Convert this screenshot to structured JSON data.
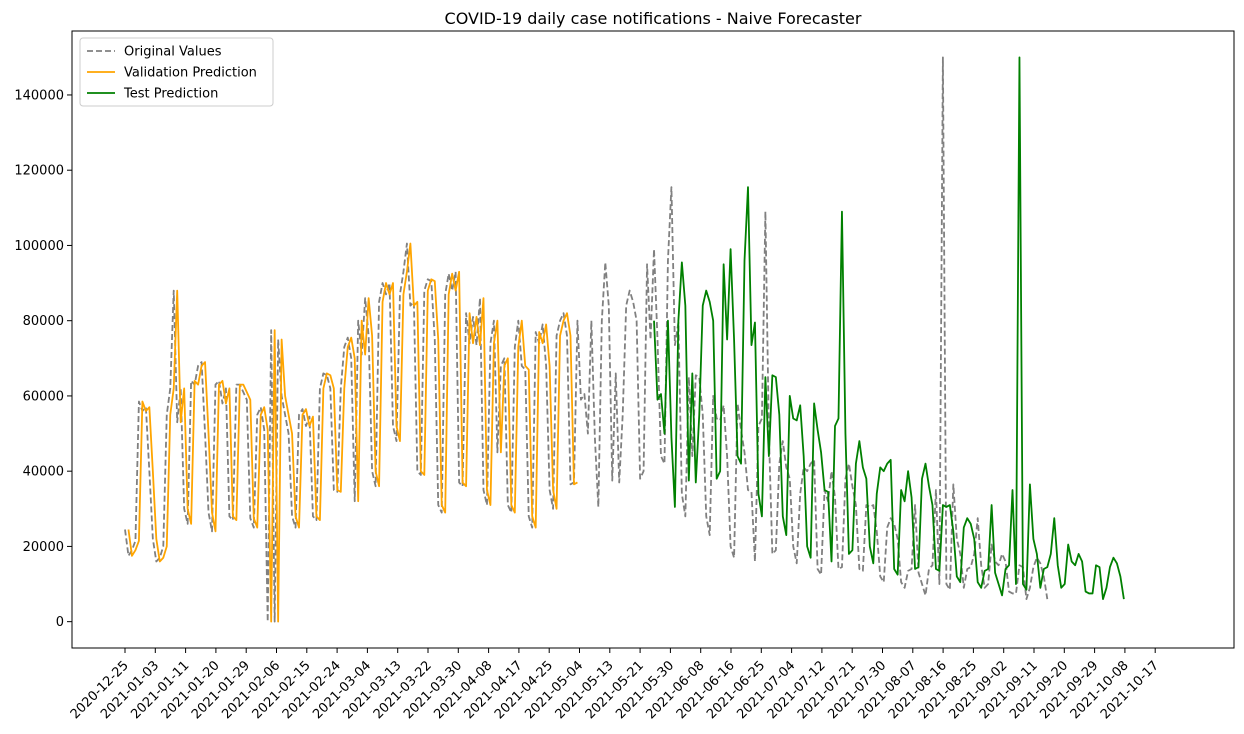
{
  "chart_data": {
    "type": "line",
    "title": "COVID-19 daily case notifications - Naive Forecaster",
    "xlabel": "",
    "ylabel": "",
    "ylim": [
      -7000,
      157000
    ],
    "yticks": [
      0,
      20000,
      40000,
      60000,
      80000,
      100000,
      120000,
      140000
    ],
    "x_tick_labels": [
      "2020-12-25",
      "2021-01-03",
      "2021-01-11",
      "2021-01-20",
      "2021-01-29",
      "2021-02-06",
      "2021-02-15",
      "2021-02-24",
      "2021-03-04",
      "2021-03-13",
      "2021-03-22",
      "2021-03-30",
      "2021-04-08",
      "2021-04-17",
      "2021-04-25",
      "2021-05-04",
      "2021-05-13",
      "2021-05-21",
      "2021-05-30",
      "2021-06-08",
      "2021-06-16",
      "2021-06-25",
      "2021-07-04",
      "2021-07-12",
      "2021-07-21",
      "2021-07-30",
      "2021-08-07",
      "2021-08-16",
      "2021-08-25",
      "2021-09-02",
      "2021-09-11",
      "2021-09-20",
      "2021-09-29",
      "2021-10-08",
      "2021-10-17"
    ],
    "grid": false,
    "legend_position": "upper-left",
    "x_start": "2020-12-25",
    "series": [
      {
        "name": "Original Values",
        "color": "#808080",
        "style": "dashed",
        "start": "2020-12-25",
        "values": [
          24500,
          17500,
          19000,
          21500,
          58500,
          56000,
          57000,
          40000,
          22000,
          16000,
          17000,
          20000,
          55000,
          62000,
          88000,
          53000,
          62000,
          30000,
          26000,
          64000,
          63000,
          68000,
          69000,
          50000,
          29000,
          24000,
          63000,
          64000,
          58000,
          62000,
          28000,
          27000,
          63000,
          63000,
          61000,
          59000,
          27500,
          25000,
          55000,
          57000,
          51000,
          0,
          77500,
          0,
          75000,
          60000,
          55000,
          50000,
          28000,
          25000,
          55000,
          56500,
          52000,
          54500,
          28000,
          27000,
          62000,
          66000,
          65500,
          62000,
          35000,
          34500,
          62000,
          73000,
          75500,
          70000,
          32000,
          80000,
          71000,
          86000,
          76000,
          40000,
          36000,
          85000,
          90000,
          87000,
          90000,
          52000,
          48000,
          87000,
          93000,
          100500,
          84000,
          85000,
          40000,
          39000,
          88000,
          91000,
          90500,
          75000,
          31000,
          29000,
          87000,
          92500,
          88000,
          93000,
          37000,
          36000,
          82000,
          74000,
          81000,
          73500,
          86000,
          35000,
          31000,
          74000,
          80000,
          45000,
          68000,
          70000,
          31000,
          29000,
          73000,
          80000,
          68000,
          67000,
          28000,
          25000,
          77000,
          74000,
          79000,
          68000,
          35000,
          30000,
          76000,
          80000,
          82000,
          76000,
          36500,
          37000,
          80000,
          59000,
          60500,
          50000,
          80000,
          49000,
          30500,
          80000,
          95500,
          84000,
          37500,
          66000,
          37000,
          55000,
          84000,
          88000,
          85000,
          80000,
          38000,
          40000,
          95000,
          75000,
          99000,
          75000,
          44000,
          42000,
          96000,
          115500,
          73500,
          79500,
          34000,
          28000,
          65000,
          44000,
          65500,
          65000,
          55000,
          28000,
          23000,
          60000,
          54000,
          53500,
          57500,
          44000,
          20000,
          17000,
          58000,
          51000,
          45000,
          35000,
          34500,
          16000,
          52000,
          54000,
          109000,
          50000,
          18000,
          19000,
          42000,
          48000,
          41000,
          38000,
          20000,
          15500,
          34000,
          41000,
          40000,
          42000,
          43000,
          14000,
          12500,
          35000,
          32000,
          40000,
          33000,
          14000,
          14500,
          38000,
          42000,
          36000,
          31000,
          14000,
          13500,
          31000,
          30500,
          31000,
          24000,
          12000,
          10500,
          25000,
          27500,
          26000,
          22000,
          10500,
          9000,
          13500,
          14000,
          31000,
          13000,
          10000,
          7000,
          14000,
          15000,
          35000,
          10000,
          150000,
          10000,
          8500,
          36500,
          22000,
          18000,
          9000,
          14000,
          14500,
          18000,
          27500,
          15000,
          9000,
          10000,
          20500,
          16000,
          15000,
          18000,
          16000,
          8000,
          7500,
          7500,
          15000,
          14500,
          6000,
          9000,
          14500,
          17000,
          15500,
          12000,
          6000
        ]
      },
      {
        "name": "Validation Prediction",
        "color": "#ffa500",
        "style": "solid",
        "start": "2020-12-26",
        "values": [
          24500,
          17500,
          19000,
          21500,
          58500,
          56000,
          57000,
          40000,
          22000,
          16000,
          17000,
          20000,
          55000,
          62000,
          88000,
          53000,
          62000,
          30000,
          26000,
          64000,
          63000,
          68000,
          69000,
          50000,
          29000,
          24000,
          63000,
          64000,
          58000,
          62000,
          28000,
          27000,
          63000,
          63000,
          61000,
          59000,
          27500,
          25000,
          55000,
          57000,
          51000,
          0,
          77500,
          0,
          75000,
          60000,
          55000,
          50000,
          28000,
          25000,
          55000,
          56500,
          52000,
          54500,
          28000,
          27000,
          62000,
          66000,
          65500,
          62000,
          35000,
          34500,
          62000,
          73000,
          75500,
          70000,
          32000,
          80000,
          71000,
          86000,
          76000,
          40000,
          36000,
          85000,
          90000,
          87000,
          90000,
          52000,
          48000,
          87000,
          93000,
          100500,
          84000,
          85000,
          40000,
          39000,
          88000,
          91000,
          90500,
          75000,
          31000,
          29000,
          87000,
          92500,
          88000,
          93000,
          37000,
          36000,
          82000,
          74000,
          81000,
          73500,
          86000,
          35000,
          31000,
          74000,
          80000,
          45000,
          68000,
          70000,
          31000,
          29000,
          73000,
          80000,
          68000,
          67000,
          28000,
          25000,
          77000,
          74000,
          79000,
          68000,
          35000,
          30000,
          76000,
          80000,
          82000,
          76000,
          36500,
          37000
        ]
      },
      {
        "name": "Test Prediction",
        "color": "#008000",
        "style": "solid",
        "start": "2021-05-26",
        "values": [
          80000,
          59000,
          60500,
          50000,
          80000,
          49000,
          30500,
          80000,
          95500,
          84000,
          37500,
          66000,
          37000,
          55000,
          84000,
          88000,
          85000,
          80000,
          38000,
          40000,
          95000,
          75000,
          99000,
          75000,
          44000,
          42000,
          96000,
          115500,
          73500,
          79500,
          34000,
          28000,
          65000,
          44000,
          65500,
          65000,
          55000,
          28000,
          23000,
          60000,
          54000,
          53500,
          57500,
          44000,
          20000,
          17000,
          58000,
          51000,
          45000,
          35000,
          34500,
          16000,
          52000,
          54000,
          109000,
          50000,
          18000,
          19000,
          42000,
          48000,
          41000,
          38000,
          20000,
          15500,
          34000,
          41000,
          40000,
          42000,
          43000,
          14000,
          12500,
          35000,
          32000,
          40000,
          33000,
          14000,
          14500,
          38000,
          42000,
          36000,
          31000,
          14000,
          13500,
          31000,
          30500,
          31000,
          24000,
          12000,
          10500,
          25000,
          27500,
          26000,
          22000,
          10500,
          9000,
          13500,
          14000,
          31000,
          13000,
          10000,
          7000,
          14000,
          15000,
          35000,
          10000,
          150000,
          10000,
          8500,
          36500,
          22000,
          18000,
          9000,
          14000,
          14500,
          18000,
          27500,
          15000,
          9000,
          10000,
          20500,
          16000,
          15000,
          18000,
          16000,
          8000,
          7500,
          7500,
          15000,
          14500,
          6000,
          9000,
          14500,
          17000,
          15500,
          12000,
          6000
        ]
      }
    ]
  }
}
